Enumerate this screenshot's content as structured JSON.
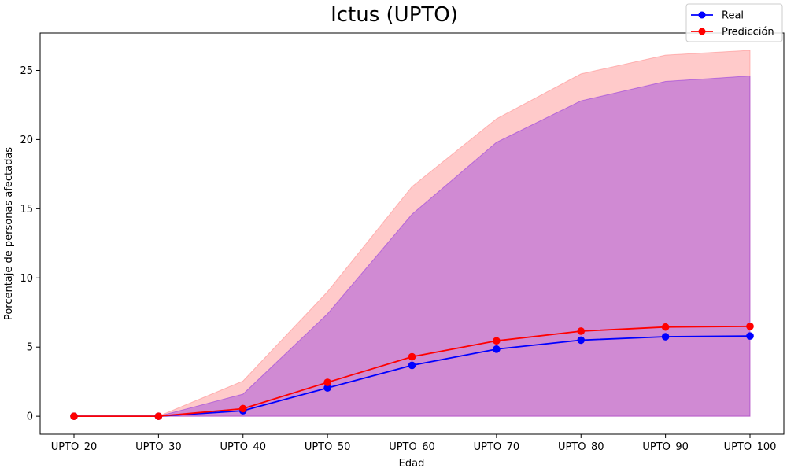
{
  "chart_data": {
    "type": "line",
    "title": "Ictus (UPTO)",
    "xlabel": "Edad",
    "ylabel": "Porcentaje de personas afectadas",
    "categories": [
      "UPTO_20",
      "UPTO_30",
      "UPTO_40",
      "UPTO_50",
      "UPTO_60",
      "UPTO_70",
      "UPTO_80",
      "UPTO_90",
      "UPTO_100"
    ],
    "ylim": [
      -1.3,
      27.7
    ],
    "yticks": [
      0,
      5,
      10,
      15,
      20,
      25
    ],
    "grid": false,
    "legend_position": "top-right",
    "series": [
      {
        "name": "Real",
        "color": "#0000ff",
        "values": [
          0.0,
          0.0,
          0.4,
          2.05,
          3.68,
          4.85,
          5.5,
          5.75,
          5.8
        ],
        "band_upper": [
          0.0,
          0.0,
          1.6,
          7.4,
          14.6,
          19.8,
          22.8,
          24.2,
          24.6
        ],
        "band_color": "#8a2be2"
      },
      {
        "name": "Predicción",
        "color": "#ff0000",
        "values": [
          0.0,
          0.0,
          0.55,
          2.45,
          4.3,
          5.45,
          6.15,
          6.45,
          6.5
        ],
        "band_upper": [
          0.0,
          0.0,
          2.55,
          9.0,
          16.6,
          21.5,
          24.75,
          26.1,
          26.45
        ],
        "band_color": "#ff8080"
      }
    ]
  }
}
